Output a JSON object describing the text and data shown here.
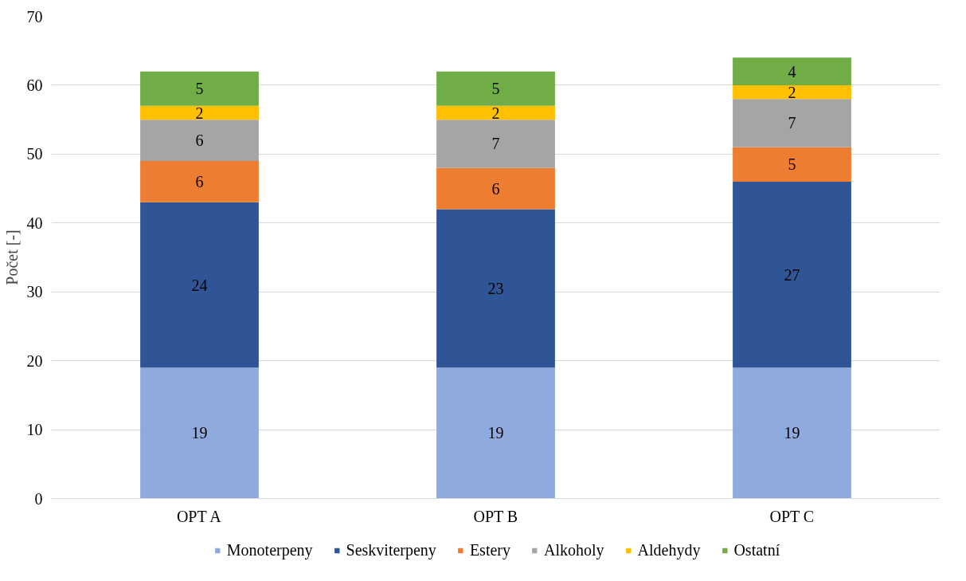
{
  "chart_data": {
    "type": "bar",
    "stacked": true,
    "ylabel": "Počet [-]",
    "categories": [
      "OPT A",
      "OPT B",
      "OPT C"
    ],
    "series": [
      {
        "name": "Monoterpeny",
        "color": "#8faadc",
        "values": [
          19,
          19,
          19
        ]
      },
      {
        "name": "Seskviterpeny",
        "color": "#2f5597",
        "values": [
          24,
          23,
          27
        ]
      },
      {
        "name": "Estery",
        "color": "#ed7d31",
        "values": [
          6,
          6,
          5
        ]
      },
      {
        "name": "Alkoholy",
        "color": "#a5a5a5",
        "values": [
          6,
          7,
          7
        ]
      },
      {
        "name": "Aldehydy",
        "color": "#ffc000",
        "values": [
          2,
          2,
          2
        ]
      },
      {
        "name": "Ostatní",
        "color": "#70ad47",
        "values": [
          5,
          5,
          4
        ]
      }
    ],
    "ylim": [
      0,
      70
    ],
    "yticks": [
      0,
      10,
      20,
      30,
      40,
      50,
      60,
      70
    ],
    "grid": "y",
    "legend": "bottom",
    "data_labels": true
  }
}
